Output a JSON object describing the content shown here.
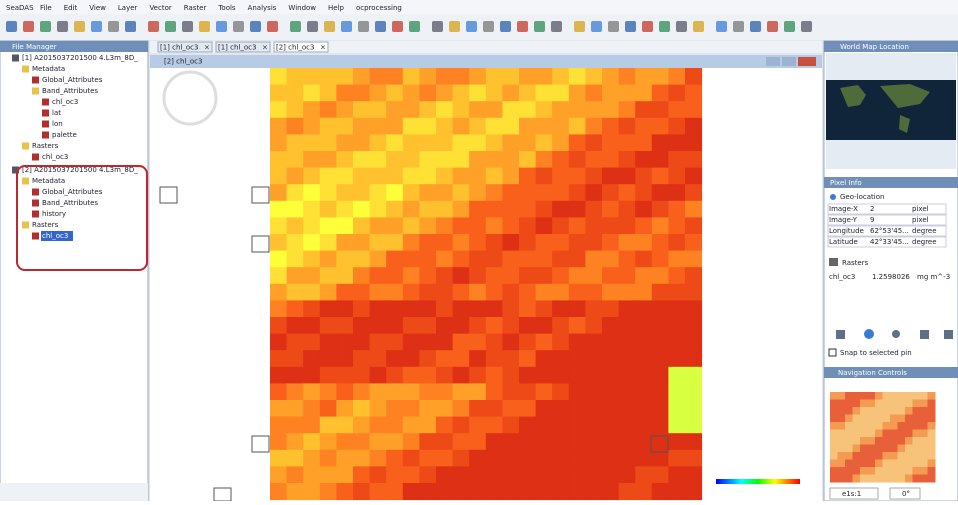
{
  "app_name": "SeaDAS",
  "menu": [
    "File",
    "Edit",
    "View",
    "Layer",
    "Vector",
    "Raster",
    "Tools",
    "Analysis",
    "Window",
    "Help",
    "ocprocessing"
  ],
  "file_manager": {
    "title": "File Manager",
    "tree": [
      {
        "label": "[1] A2015037201500 4.L3m_8D_",
        "children": [
          {
            "label": "Metadata",
            "children": [
              {
                "label": "Global_Attributes"
              },
              {
                "label": "Band_Attributes",
                "children": [
                  {
                    "label": "chl_oc3"
                  },
                  {
                    "label": "lat"
                  },
                  {
                    "label": "lon"
                  },
                  {
                    "label": "palette"
                  }
                ]
              }
            ]
          },
          {
            "label": "Rasters",
            "children": [
              {
                "label": "chl_oc3"
              }
            ]
          }
        ]
      },
      {
        "label": "[2] A2015037201500 4.L3m_8D_",
        "children": [
          {
            "label": "Metadata",
            "children": [
              {
                "label": "Global_Attributes"
              },
              {
                "label": "Band_Attributes"
              },
              {
                "label": "history"
              }
            ]
          },
          {
            "label": "Rasters",
            "children": [
              {
                "label": "chl_oc3"
              }
            ]
          }
        ]
      }
    ]
  },
  "tabs": [
    "[1] chl_oc3",
    "[1] chl_oc3",
    "[2] chl_oc3"
  ],
  "image_window": {
    "title": "[2] chl_oc3"
  },
  "world_map": {
    "title": "World Map Location"
  },
  "pixel_info": {
    "title": "Pixel Info",
    "geo_section": "Geo-location",
    "rows": [
      [
        "Image-X",
        "2",
        "pixel"
      ],
      [
        "Image-Y",
        "9",
        "pixel"
      ],
      [
        "Longitude",
        "62°53'45...",
        "degree"
      ],
      [
        "Latitude",
        "42°33'45...",
        "degree"
      ]
    ],
    "raster_section": "Rasters",
    "raster_row": [
      "chl_oc3",
      "1.2598026",
      "mg m^-3"
    ],
    "snap_label": "Snap to selected pin"
  },
  "navigation": {
    "title": "Navigation Controls",
    "scale": "e1s:1",
    "angle": "0°"
  }
}
